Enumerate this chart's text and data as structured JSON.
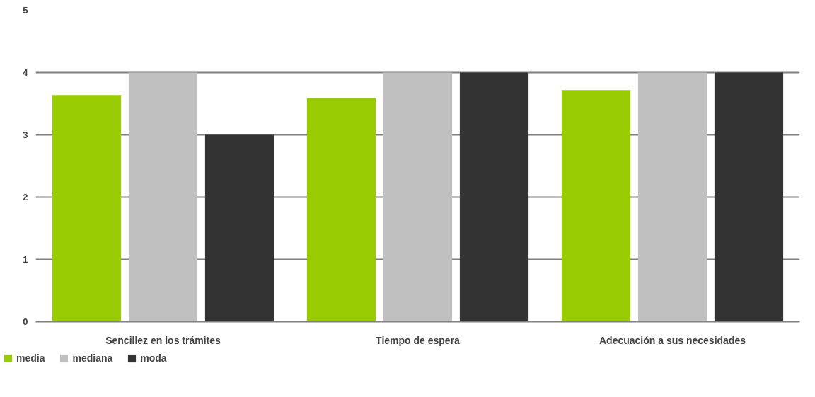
{
  "chart_data": {
    "type": "bar",
    "categories": [
      "Sencillez en los trámites",
      "Tiempo de espera",
      "Adecuación a sus necesidades"
    ],
    "series": [
      {
        "name": "media",
        "color": "#99cc00",
        "values": [
          3.64,
          3.59,
          3.72
        ]
      },
      {
        "name": "mediana",
        "color": "#c0c0c0",
        "values": [
          4,
          4,
          4
        ]
      },
      {
        "name": "moda",
        "color": "#333333",
        "values": [
          3,
          4,
          4
        ]
      }
    ],
    "ylim": [
      0,
      5
    ],
    "yticks": [
      0,
      1,
      2,
      3,
      4,
      5
    ],
    "grid": "y",
    "legend": "bottom left"
  }
}
